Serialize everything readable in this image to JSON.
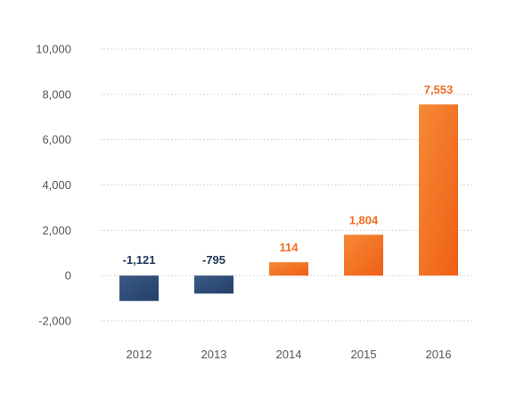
{
  "chart_data": {
    "type": "bar",
    "categories": [
      "2012",
      "2013",
      "2014",
      "2015",
      "2016"
    ],
    "values": [
      -1121,
      -795,
      114,
      1804,
      7553
    ],
    "data_labels": [
      "-1,121",
      "-795",
      "114",
      "1,804",
      "7,553"
    ],
    "ylim": [
      -2000,
      10000
    ],
    "yticks": [
      10000,
      8000,
      6000,
      4000,
      2000,
      0,
      -2000
    ],
    "ytick_labels": [
      "10,000",
      "8,000",
      "6,000",
      "4,000",
      "2,000",
      "0",
      "-2,000"
    ],
    "grid": true,
    "colors": {
      "negative": "#2e4a74",
      "negative_light": "#3b5a86",
      "positive": "#f26d21",
      "positive_light": "#f58a36",
      "negative_label": "#1f3558",
      "positive_label": "#f26d21",
      "grid": "#cccccc",
      "tick": "#555555"
    }
  }
}
